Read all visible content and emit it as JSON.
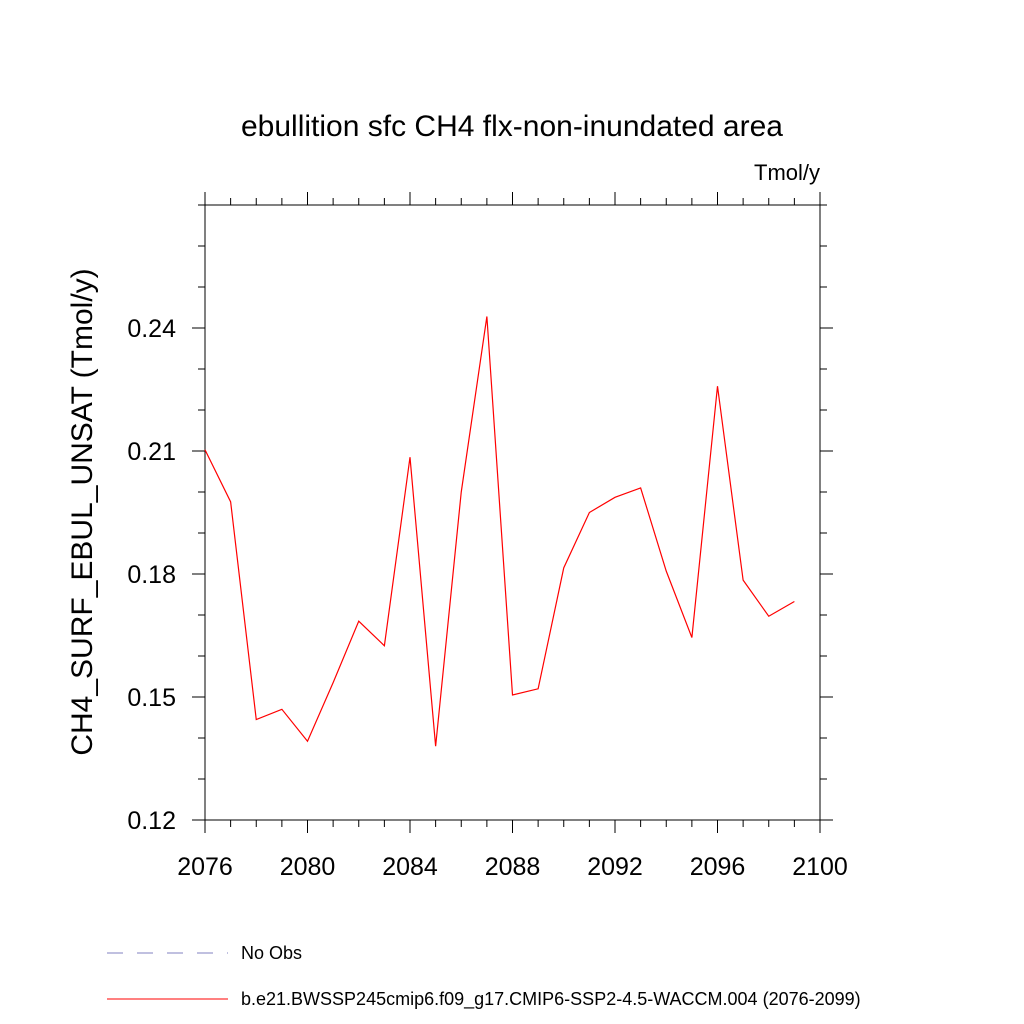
{
  "chart_data": {
    "type": "line",
    "title": "ebullition sfc CH4 flx-non-inundated area",
    "units_label": "Tmol/y",
    "xlabel": "",
    "ylabel": "CH4_SURF_EBUL_UNSAT  (Tmol/y)",
    "xlim": [
      2076,
      2100
    ],
    "ylim": [
      0.12,
      0.27
    ],
    "x_ticks": [
      2076,
      2080,
      2084,
      2088,
      2092,
      2096,
      2100
    ],
    "x_tick_labels": [
      "2076",
      "2080",
      "2084",
      "2088",
      "2092",
      "2096",
      "2100"
    ],
    "y_ticks": [
      0.12,
      0.15,
      0.18,
      0.21,
      0.24
    ],
    "y_tick_labels": [
      "0.12",
      "0.15",
      "0.18",
      "0.21",
      "0.24"
    ],
    "x_minor_step": 1,
    "y_minor_step": 0.01,
    "grid": false,
    "series": [
      {
        "name": "b.e21.BWSSP245cmip6.f09_g17.CMIP6-SSP2-4.5-WACCM.004 (2076-2099)",
        "color": "#ff0000",
        "dash": "solid",
        "x": [
          2076,
          2077,
          2078,
          2079,
          2080,
          2081,
          2082,
          2083,
          2084,
          2085,
          2086,
          2087,
          2088,
          2089,
          2090,
          2091,
          2092,
          2093,
          2094,
          2095,
          2096,
          2097,
          2098,
          2099
        ],
        "values": [
          0.2103,
          0.1976,
          0.1445,
          0.147,
          0.1392,
          0.1535,
          0.1685,
          0.1625,
          0.2085,
          0.138,
          0.2,
          0.2428,
          0.1505,
          0.152,
          0.1815,
          0.195,
          0.1987,
          0.201,
          0.1807,
          0.1645,
          0.2258,
          0.1785,
          0.1697,
          0.1733
        ]
      }
    ],
    "legend": [
      {
        "label": "No Obs",
        "color": "#8080c0",
        "dash": "dashed"
      },
      {
        "label": "b.e21.BWSSP245cmip6.f09_g17.CMIP6-SSP2-4.5-WACCM.004 (2076-2099)",
        "color": "#ff0000",
        "dash": "solid"
      }
    ],
    "legend_position": "bottom-left"
  }
}
